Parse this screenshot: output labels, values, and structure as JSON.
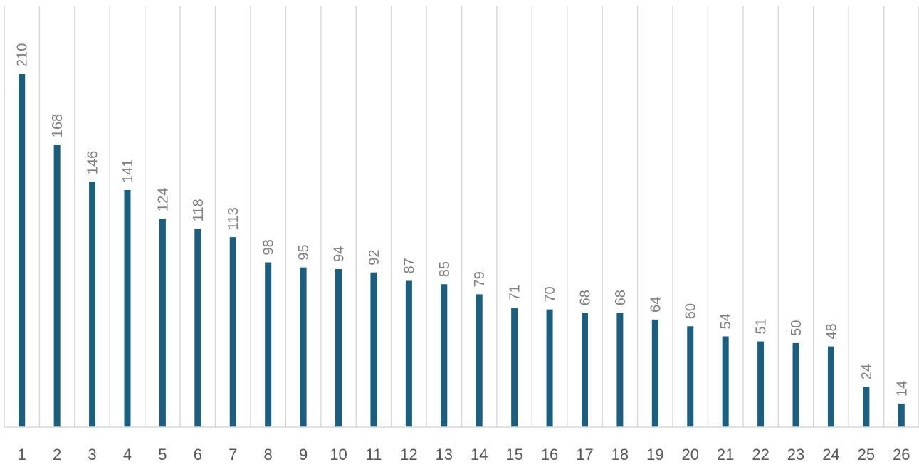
{
  "chart_data": {
    "type": "bar",
    "categories": [
      "1",
      "2",
      "3",
      "4",
      "5",
      "6",
      "7",
      "8",
      "9",
      "10",
      "11",
      "12",
      "13",
      "14",
      "15",
      "16",
      "17",
      "18",
      "19",
      "20",
      "21",
      "22",
      "23",
      "24",
      "25",
      "26"
    ],
    "values": [
      210,
      168,
      146,
      141,
      124,
      118,
      113,
      98,
      95,
      94,
      92,
      87,
      85,
      79,
      71,
      70,
      68,
      68,
      64,
      60,
      54,
      51,
      50,
      48,
      24,
      14
    ],
    "title": "",
    "xlabel": "",
    "ylabel": "",
    "ylim": [
      0,
      210
    ],
    "grid": "vertical",
    "legend": "none",
    "data_labels": "rotated-above",
    "colors": {
      "bar": "#1a5e80",
      "grid": "#d9d9d9",
      "label": "#7f7f7f",
      "tick": "#595959"
    }
  }
}
